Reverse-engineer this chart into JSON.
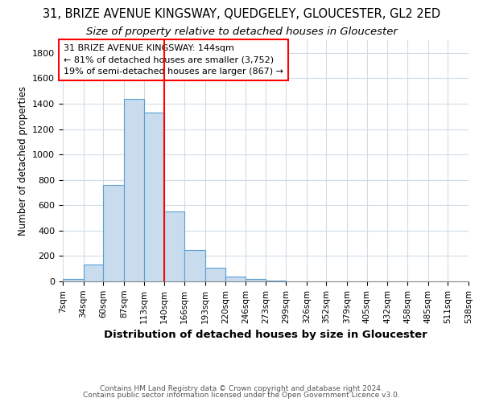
{
  "title_line1": "31, BRIZE AVENUE KINGSWAY, QUEDGELEY, GLOUCESTER, GL2 2ED",
  "title_line2": "Size of property relative to detached houses in Gloucester",
  "xlabel": "Distribution of detached houses by size in Gloucester",
  "ylabel": "Number of detached properties",
  "bar_values": [
    20,
    130,
    760,
    1440,
    1330,
    550,
    250,
    110,
    35,
    20,
    5,
    1,
    0,
    0,
    0,
    0,
    0,
    0,
    0,
    0
  ],
  "bin_edges": [
    7,
    34,
    60,
    87,
    113,
    140,
    166,
    193,
    220,
    246,
    273,
    299,
    326,
    352,
    379,
    405,
    432,
    458,
    485,
    511,
    538
  ],
  "tick_labels": [
    "7sqm",
    "34sqm",
    "60sqm",
    "87sqm",
    "113sqm",
    "140sqm",
    "166sqm",
    "193sqm",
    "220sqm",
    "246sqm",
    "273sqm",
    "299sqm",
    "326sqm",
    "352sqm",
    "379sqm",
    "405sqm",
    "432sqm",
    "458sqm",
    "485sqm",
    "511sqm",
    "538sqm"
  ],
  "bar_color": "#c8dced",
  "bar_edge_color": "#5b9fd4",
  "vline_x": 140,
  "vline_color": "red",
  "annotation_line1": "31 BRIZE AVENUE KINGSWAY: 144sqm",
  "annotation_line2": "← 81% of detached houses are smaller (3,752)",
  "annotation_line3": "19% of semi-detached houses are larger (867) →",
  "annotation_box_color": "white",
  "annotation_box_edge_color": "red",
  "ylim": [
    0,
    1900
  ],
  "yticks": [
    0,
    200,
    400,
    600,
    800,
    1000,
    1200,
    1400,
    1600,
    1800
  ],
  "background_color": "#ffffff",
  "plot_bg_color": "#ffffff",
  "grid_color": "#d0dce8",
  "footer_line1": "Contains HM Land Registry data © Crown copyright and database right 2024.",
  "footer_line2": "Contains public sector information licensed under the Open Government Licence v3.0.",
  "title_fontsize": 10.5,
  "subtitle_fontsize": 9.5,
  "xlabel_fontsize": 9.5,
  "ylabel_fontsize": 8.5,
  "tick_fontsize": 7.5,
  "annotation_fontsize": 8,
  "footer_fontsize": 6.5
}
